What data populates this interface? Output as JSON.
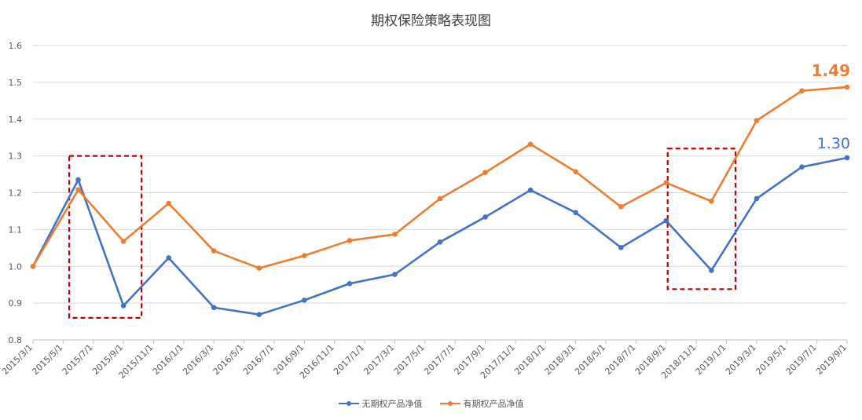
{
  "chart_data": {
    "type": "line",
    "title": "期权保险策略表现图",
    "xlabel": "",
    "ylabel": "",
    "ylim": [
      0.8,
      1.6
    ],
    "yticks": [
      "0.8",
      "0.9",
      "1.0",
      "1.1",
      "1.2",
      "1.3",
      "1.4",
      "1.5",
      "1.6"
    ],
    "x_tick_labels": [
      "2015/3/1",
      "2015/5/1",
      "2015/7/1",
      "2015/9/1",
      "2015/11/1",
      "2016/1/1",
      "2016/3/1",
      "2016/5/1",
      "2016/7/1",
      "2016/9/1",
      "2016/11/1",
      "2017/1/1",
      "2017/3/1",
      "2017/5/1",
      "2017/7/1",
      "2017/9/1",
      "2017/11/1",
      "2018/1/1",
      "2018/3/1",
      "2018/5/1",
      "2018/7/1",
      "2018/9/1",
      "2018/11/1",
      "2019/1/1",
      "2019/3/1",
      "2019/5/1",
      "2019/7/1",
      "2019/9/1"
    ],
    "grid": "horizontal",
    "legend_position": "bottom",
    "series": [
      {
        "name": "无期权产品净值",
        "color": "#4472C4",
        "end_label": "1.30",
        "x": [
          0,
          1.5,
          3,
          4.5,
          6,
          7.5,
          9,
          10.5,
          12,
          13.5,
          15,
          16.5,
          18,
          19.5,
          21,
          22.5,
          24,
          25.5,
          27
        ],
        "values": [
          1.0,
          1.235,
          0.893,
          1.023,
          0.888,
          0.869,
          0.908,
          0.953,
          0.978,
          1.066,
          1.134,
          1.207,
          1.146,
          1.051,
          1.124,
          0.989,
          1.184,
          1.27,
          1.295
        ]
      },
      {
        "name": "有期权产品净值",
        "color": "#ED7D31",
        "end_label": "1.49",
        "x": [
          0,
          1.5,
          3,
          4.5,
          6,
          7.5,
          9,
          10.5,
          12,
          13.5,
          15,
          16.5,
          18,
          19.5,
          21,
          22.5,
          24,
          25.5,
          27
        ],
        "values": [
          1.0,
          1.208,
          1.068,
          1.171,
          1.042,
          0.995,
          1.029,
          1.07,
          1.087,
          1.184,
          1.255,
          1.332,
          1.257,
          1.162,
          1.227,
          1.177,
          1.396,
          1.477,
          1.487
        ]
      }
    ],
    "annotations": [
      {
        "type": "dashed-box",
        "color": "#C00000",
        "x_range": [
          1.2,
          3.6
        ],
        "y_range": [
          0.86,
          1.3
        ]
      },
      {
        "type": "dashed-box",
        "color": "#C00000",
        "x_range": [
          21.05,
          23.3
        ],
        "y_range": [
          0.938,
          1.32
        ]
      }
    ]
  }
}
